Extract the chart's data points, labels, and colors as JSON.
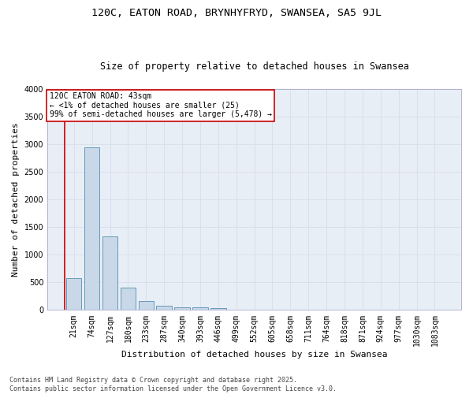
{
  "title1": "120C, EATON ROAD, BRYNHYFRYD, SWANSEA, SA5 9JL",
  "title2": "Size of property relative to detached houses in Swansea",
  "xlabel": "Distribution of detached houses by size in Swansea",
  "ylabel": "Number of detached properties",
  "categories": [
    "21sqm",
    "74sqm",
    "127sqm",
    "180sqm",
    "233sqm",
    "287sqm",
    "340sqm",
    "393sqm",
    "446sqm",
    "499sqm",
    "552sqm",
    "605sqm",
    "658sqm",
    "711sqm",
    "764sqm",
    "818sqm",
    "871sqm",
    "924sqm",
    "977sqm",
    "1030sqm",
    "1083sqm"
  ],
  "values": [
    580,
    2940,
    1330,
    410,
    160,
    80,
    50,
    45,
    40,
    0,
    0,
    0,
    0,
    0,
    0,
    0,
    0,
    0,
    0,
    0,
    0
  ],
  "bar_color": "#c8d8e8",
  "bar_edge_color": "#6699bb",
  "grid_color": "#d8e0ec",
  "background_color": "#e8eef6",
  "annotation_box_color": "#cc0000",
  "annotation_text": "120C EATON ROAD: 43sqm\n← <1% of detached houses are smaller (25)\n99% of semi-detached houses are larger (5,478) →",
  "ylim": [
    0,
    4000
  ],
  "yticks": [
    0,
    500,
    1000,
    1500,
    2000,
    2500,
    3000,
    3500,
    4000
  ],
  "footer": "Contains HM Land Registry data © Crown copyright and database right 2025.\nContains public sector information licensed under the Open Government Licence v3.0.",
  "title1_fontsize": 9.5,
  "title2_fontsize": 8.5,
  "xlabel_fontsize": 8,
  "ylabel_fontsize": 8,
  "tick_fontsize": 7,
  "annotation_fontsize": 7,
  "footer_fontsize": 6
}
